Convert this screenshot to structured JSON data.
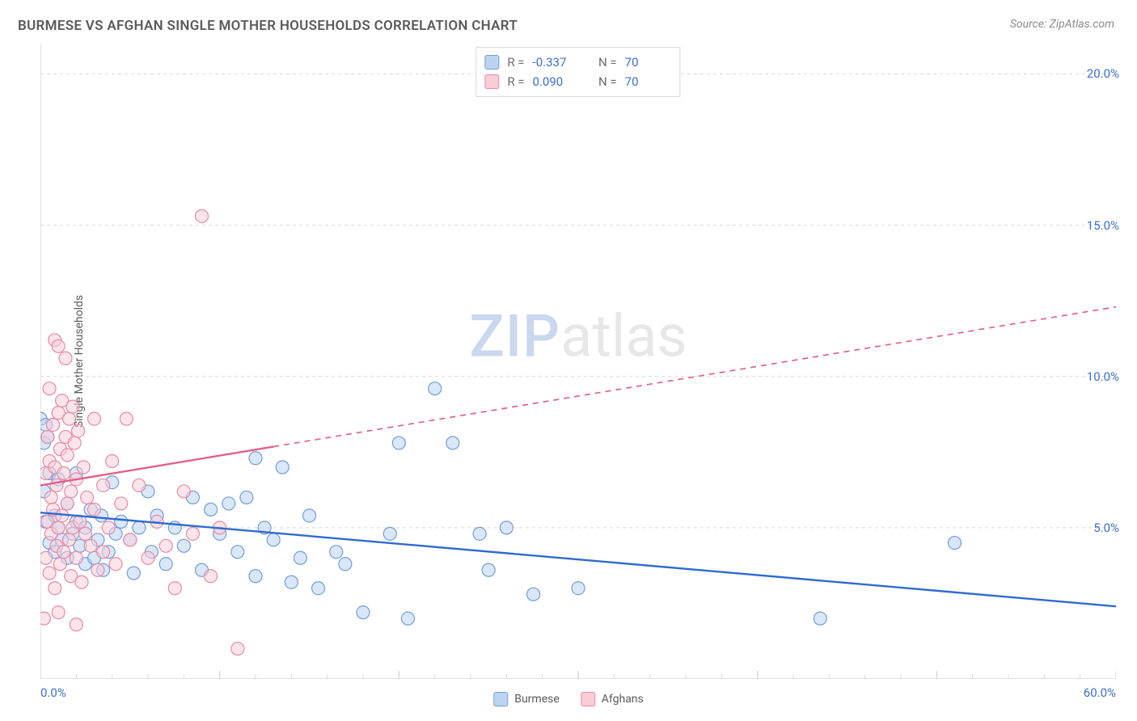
{
  "header": {
    "title": "BURMESE VS AFGHAN SINGLE MOTHER HOUSEHOLDS CORRELATION CHART",
    "source": "Source: ZipAtlas.com"
  },
  "chart": {
    "type": "scatter",
    "ylabel": "Single Mother Households",
    "xlim": [
      0,
      60
    ],
    "ylim": [
      0,
      21
    ],
    "xtick_major": [
      0,
      10,
      20,
      30,
      40,
      50,
      60
    ],
    "xtick_minor_step": 2,
    "xtick_labels": {
      "first": "0.0%",
      "last": "60.0%"
    },
    "ytick_positions": [
      5,
      10,
      15,
      20
    ],
    "ytick_labels": [
      "5.0%",
      "10.0%",
      "15.0%",
      "20.0%"
    ],
    "grid_color": "#d9d9d9",
    "axis_color": "#d0d0d0",
    "background_color": "#ffffff",
    "label_color": "#5a5a5a",
    "tick_label_color": "#3b6fd6",
    "marker_radius": 8,
    "marker_stroke_width": 1.2,
    "trend_line_width": 2.4,
    "series": [
      {
        "name": "Burmese",
        "fill": "#bcd3f2",
        "stroke": "#6f9ddd",
        "r_value": "-0.337",
        "n_value": "70",
        "trend": {
          "x1": 0,
          "y1": 5.5,
          "x2": 60,
          "y2": 2.4,
          "solid_until_x": 60,
          "color": "#2e6bd0"
        },
        "points": [
          [
            0.0,
            8.6
          ],
          [
            0.2,
            6.2
          ],
          [
            0.3,
            5.2
          ],
          [
            0.3,
            8.4
          ],
          [
            0.5,
            6.8
          ],
          [
            0.5,
            4.5
          ],
          [
            0.8,
            5.4
          ],
          [
            0.8,
            4.2
          ],
          [
            1.0,
            6.6
          ],
          [
            1.0,
            5.0
          ],
          [
            1.2,
            4.6
          ],
          [
            1.5,
            5.8
          ],
          [
            1.5,
            4.0
          ],
          [
            1.8,
            4.8
          ],
          [
            2.0,
            6.8
          ],
          [
            2.0,
            5.2
          ],
          [
            2.2,
            4.4
          ],
          [
            2.5,
            5.0
          ],
          [
            2.5,
            3.8
          ],
          [
            2.8,
            5.6
          ],
          [
            3.0,
            4.0
          ],
          [
            3.2,
            4.6
          ],
          [
            3.4,
            5.4
          ],
          [
            3.5,
            3.6
          ],
          [
            3.8,
            4.2
          ],
          [
            4.0,
            6.5
          ],
          [
            4.2,
            4.8
          ],
          [
            4.5,
            5.2
          ],
          [
            5.0,
            4.6
          ],
          [
            5.2,
            3.5
          ],
          [
            5.5,
            5.0
          ],
          [
            6.0,
            6.2
          ],
          [
            6.2,
            4.2
          ],
          [
            6.5,
            5.4
          ],
          [
            7.0,
            3.8
          ],
          [
            7.5,
            5.0
          ],
          [
            8.0,
            4.4
          ],
          [
            8.5,
            6.0
          ],
          [
            9.0,
            3.6
          ],
          [
            9.5,
            5.6
          ],
          [
            10.0,
            4.8
          ],
          [
            10.5,
            5.8
          ],
          [
            11.0,
            4.2
          ],
          [
            11.5,
            6.0
          ],
          [
            12.0,
            3.4
          ],
          [
            12.0,
            7.3
          ],
          [
            12.5,
            5.0
          ],
          [
            13.0,
            4.6
          ],
          [
            13.5,
            7.0
          ],
          [
            14.0,
            3.2
          ],
          [
            14.5,
            4.0
          ],
          [
            15.0,
            5.4
          ],
          [
            15.5,
            3.0
          ],
          [
            16.5,
            4.2
          ],
          [
            17.0,
            3.8
          ],
          [
            18.0,
            2.2
          ],
          [
            19.5,
            4.8
          ],
          [
            20.0,
            7.8
          ],
          [
            20.5,
            2.0
          ],
          [
            22.0,
            9.6
          ],
          [
            23.0,
            7.8
          ],
          [
            24.5,
            4.8
          ],
          [
            25.0,
            3.6
          ],
          [
            26.0,
            5.0
          ],
          [
            27.5,
            2.8
          ],
          [
            30.0,
            3.0
          ],
          [
            43.5,
            2.0
          ],
          [
            51.0,
            4.5
          ],
          [
            0.2,
            7.8
          ],
          [
            0.4,
            8.0
          ]
        ]
      },
      {
        "name": "Afghans",
        "fill": "#f7cdd8",
        "stroke": "#e88aa3",
        "r_value": "0.090",
        "n_value": "70",
        "trend": {
          "x1": 0,
          "y1": 6.4,
          "x2": 60,
          "y2": 12.3,
          "solid_until_x": 13,
          "color": "#e26088"
        },
        "points": [
          [
            0.2,
            2.0
          ],
          [
            0.3,
            4.0
          ],
          [
            0.3,
            6.8
          ],
          [
            0.4,
            5.2
          ],
          [
            0.4,
            8.0
          ],
          [
            0.5,
            3.5
          ],
          [
            0.5,
            7.2
          ],
          [
            0.5,
            9.6
          ],
          [
            0.6,
            4.8
          ],
          [
            0.6,
            6.0
          ],
          [
            0.7,
            5.6
          ],
          [
            0.7,
            8.4
          ],
          [
            0.8,
            3.0
          ],
          [
            0.8,
            7.0
          ],
          [
            0.8,
            11.2
          ],
          [
            0.9,
            4.4
          ],
          [
            0.9,
            6.4
          ],
          [
            1.0,
            5.0
          ],
          [
            1.0,
            8.8
          ],
          [
            1.0,
            11.0
          ],
          [
            1.1,
            3.8
          ],
          [
            1.1,
            7.6
          ],
          [
            1.2,
            5.4
          ],
          [
            1.2,
            9.2
          ],
          [
            1.3,
            4.2
          ],
          [
            1.3,
            6.8
          ],
          [
            1.4,
            8.0
          ],
          [
            1.4,
            10.6
          ],
          [
            1.5,
            5.8
          ],
          [
            1.5,
            7.4
          ],
          [
            1.6,
            4.6
          ],
          [
            1.6,
            8.6
          ],
          [
            1.7,
            3.4
          ],
          [
            1.7,
            6.2
          ],
          [
            1.8,
            5.0
          ],
          [
            1.8,
            9.0
          ],
          [
            1.9,
            7.8
          ],
          [
            2.0,
            4.0
          ],
          [
            2.0,
            6.6
          ],
          [
            2.1,
            8.2
          ],
          [
            2.2,
            5.2
          ],
          [
            2.3,
            3.2
          ],
          [
            2.4,
            7.0
          ],
          [
            2.5,
            4.8
          ],
          [
            2.6,
            6.0
          ],
          [
            2.8,
            4.4
          ],
          [
            3.0,
            8.6
          ],
          [
            3.0,
            5.6
          ],
          [
            3.2,
            3.6
          ],
          [
            3.5,
            6.4
          ],
          [
            3.5,
            4.2
          ],
          [
            3.8,
            5.0
          ],
          [
            4.0,
            7.2
          ],
          [
            4.2,
            3.8
          ],
          [
            4.5,
            5.8
          ],
          [
            4.8,
            8.6
          ],
          [
            5.0,
            4.6
          ],
          [
            5.5,
            6.4
          ],
          [
            6.0,
            4.0
          ],
          [
            6.5,
            5.2
          ],
          [
            7.0,
            4.4
          ],
          [
            7.5,
            3.0
          ],
          [
            8.0,
            6.2
          ],
          [
            8.5,
            4.8
          ],
          [
            9.0,
            15.3
          ],
          [
            9.5,
            3.4
          ],
          [
            10.0,
            5.0
          ],
          [
            11.0,
            1.0
          ],
          [
            1.0,
            2.2
          ],
          [
            2.0,
            1.8
          ]
        ]
      }
    ]
  },
  "legend_bottom": {
    "items": [
      {
        "label": "Burmese",
        "fill": "#bcd3f2",
        "stroke": "#6f9ddd"
      },
      {
        "label": "Afghans",
        "fill": "#f7cdd8",
        "stroke": "#e88aa3"
      }
    ]
  },
  "watermark": {
    "part1": "ZIP",
    "part2": "atlas"
  }
}
